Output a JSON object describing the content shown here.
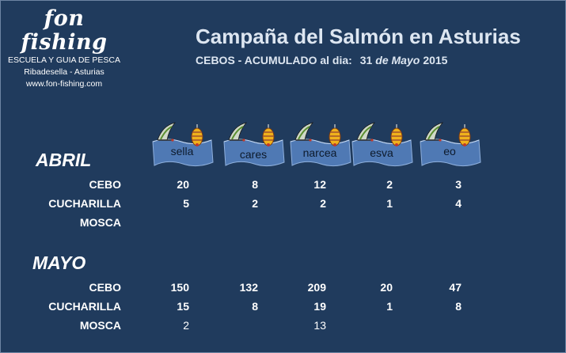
{
  "header": {
    "brand_name": "fon fishing",
    "brand_tagline": "ESCUELA  Y  GUIA DE PESCA",
    "brand_location": "Ribadesella - Asturias",
    "brand_url": "www.fon-fishing.com",
    "title": "Campaña del Salmón en Asturias",
    "subtitle": "CEBOS  - ACUMULADO al dia:",
    "date_day": "31",
    "date_word": "de Mayo",
    "date_year": "2015"
  },
  "rivers": [
    "sella",
    "cares",
    "narcea",
    "esva",
    "eo"
  ],
  "sections": [
    {
      "title": "ABRIL",
      "rows": [
        {
          "label": "CEBO",
          "values": [
            "20",
            "8",
            "12",
            "2",
            "3"
          ]
        },
        {
          "label": "CUCHARILLA",
          "values": [
            "5",
            "2",
            "2",
            "1",
            "4"
          ]
        },
        {
          "label": "MOSCA",
          "values": [
            "",
            "",
            "",
            "",
            ""
          ]
        }
      ]
    },
    {
      "title": "MAYO",
      "rows": [
        {
          "label": "CEBO",
          "values": [
            "150",
            "132",
            "209",
            "20",
            "47"
          ]
        },
        {
          "label": "CUCHARILLA",
          "values": [
            "15",
            "8",
            "19",
            "1",
            "8"
          ]
        },
        {
          "label": "MOSCA",
          "values": [
            "2",
            "",
            "13",
            "",
            ""
          ]
        }
      ]
    }
  ],
  "icons": [
    "salmon-fly-icon",
    "fishing-lure-icon"
  ],
  "colors": {
    "background": "#203b5d",
    "banner": "#4f79b4",
    "text": "#ffffff"
  }
}
